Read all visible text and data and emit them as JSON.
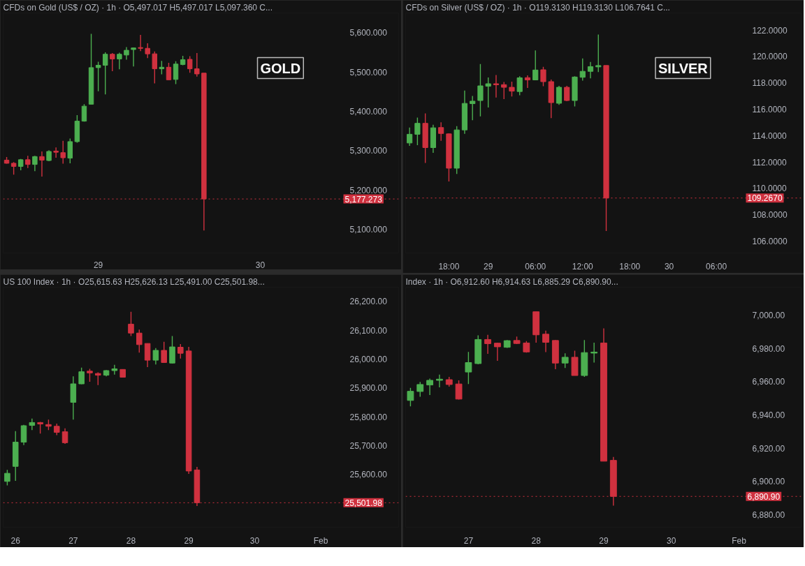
{
  "chart_data": [
    {
      "type": "candlestick",
      "title": "CFDs on Gold (US$ / OZ) · 1h · O5,497.017 H5,497.017 L5,097.360 C...",
      "annotations": [
        "GOLD"
      ],
      "categories": [
        null,
        null,
        null,
        null,
        null,
        null,
        null,
        null,
        null,
        null,
        null,
        null,
        null,
        "29",
        null,
        null,
        null,
        null,
        null,
        null,
        null,
        null,
        null,
        null,
        null,
        null,
        null,
        null,
        null,
        null,
        null,
        null,
        null,
        null,
        null,
        null,
        "30",
        null,
        null,
        null,
        null,
        null,
        null,
        null,
        null,
        null,
        null,
        null
      ],
      "ohlc": [
        [
          5276,
          5284,
          5267,
          5268
        ],
        [
          5268,
          5271,
          5239,
          5260
        ],
        [
          5260,
          5279,
          5250,
          5277
        ],
        [
          5277,
          5287,
          5256,
          5265
        ],
        [
          5265,
          5287,
          5248,
          5285
        ],
        [
          5285,
          5298,
          5234,
          5276
        ],
        [
          5275,
          5301,
          5273,
          5298
        ],
        [
          5299,
          5308,
          5282,
          5296
        ],
        [
          5295,
          5325,
          5267,
          5282
        ],
        [
          5281,
          5331,
          5268,
          5323
        ],
        [
          5323,
          5390,
          5320,
          5375
        ],
        [
          5375,
          5418,
          5374,
          5413
        ],
        [
          5418,
          5597,
          5418,
          5511
        ],
        [
          5511,
          5526,
          5451,
          5517
        ],
        [
          5517,
          5550,
          5443,
          5545
        ],
        [
          5545,
          5548,
          5502,
          5533
        ],
        [
          5533,
          5549,
          5507,
          5545
        ],
        [
          5543,
          5563,
          5531,
          5555
        ],
        [
          5557,
          5562,
          5514,
          5561
        ],
        [
          5562,
          5594,
          5553,
          5560
        ],
        [
          5560,
          5573,
          5535,
          5546
        ],
        [
          5546,
          5552,
          5471,
          5508
        ],
        [
          5508,
          5528,
          5494,
          5512
        ],
        [
          5512,
          5523,
          5480,
          5480
        ],
        [
          5481,
          5527,
          5469,
          5520
        ],
        [
          5519,
          5541,
          5517,
          5531
        ],
        [
          5532,
          5540,
          5498,
          5508
        ],
        [
          5508,
          5548,
          5488,
          5495
        ],
        [
          5497.017,
          5497.017,
          5097.36,
          5177.273
        ],
        null,
        null,
        null,
        null,
        null,
        null,
        null,
        null,
        null,
        null,
        null,
        null,
        null,
        null,
        null,
        null,
        null,
        null,
        null
      ],
      "colors": [
        "#d0313f",
        "#d0313f",
        "#4caf50",
        "#d0313f",
        "#4caf50",
        "#d0313f",
        "#4caf50",
        "#d0313f",
        "#d0313f",
        "#4caf50",
        "#4caf50",
        "#4caf50",
        "#4caf50",
        "#4caf50",
        "#4caf50",
        "#d0313f",
        "#4caf50",
        "#4caf50",
        "#4caf50",
        "#d0313f",
        "#d0313f",
        "#d0313f",
        "#4caf50",
        "#d0313f",
        "#4caf50",
        "#4caf50",
        "#d0313f",
        "#d0313f",
        "#d0313f",
        null,
        null,
        null,
        null,
        null,
        null,
        null,
        null,
        null,
        null,
        null,
        null,
        null,
        null,
        null,
        null,
        null,
        null,
        null
      ],
      "ylim": [
        5040,
        5650
      ],
      "yticks": [
        {
          "value": 5100,
          "label": "5,100.000"
        },
        {
          "value": 5200,
          "label": "5,200.000"
        },
        {
          "value": 5300,
          "label": "5,300.000"
        },
        {
          "value": 5400,
          "label": "5,400.000"
        },
        {
          "value": 5500,
          "label": "5,500.000"
        },
        {
          "value": 5600,
          "label": "5,600.000"
        }
      ],
      "ref_lines": [
        {
          "axis": "y",
          "value": 5177.273,
          "label": "5,177.273",
          "color": "#d0313f",
          "line_style": "dotted"
        }
      ]
    },
    {
      "type": "candlestick",
      "title": "CFDs on Silver (US$ / OZ) · 1h · O119.3130 H119.3130 L106.7641 C...",
      "annotations": [
        "SILVER"
      ],
      "categories": [
        null,
        null,
        null,
        null,
        null,
        "18:00",
        null,
        null,
        null,
        null,
        "29",
        null,
        null,
        null,
        null,
        null,
        "06:00",
        null,
        null,
        null,
        null,
        null,
        "12:00",
        null,
        null,
        null,
        null,
        null,
        "18:00",
        null,
        null,
        null,
        null,
        "30",
        null,
        null,
        null,
        null,
        null,
        "06:00",
        null,
        null,
        null
      ],
      "ohlc": [
        [
          113.44,
          114.61,
          113.22,
          114.1
        ],
        [
          114.1,
          115.36,
          113.28,
          114.93
        ],
        [
          114.93,
          115.68,
          111.92,
          113.09
        ],
        [
          113.09,
          114.82,
          112.69,
          114.59
        ],
        [
          114.61,
          115.01,
          113.6,
          114.16
        ],
        [
          114.13,
          114.18,
          110.52,
          111.53
        ],
        [
          111.53,
          114.72,
          111.09,
          114.43
        ],
        [
          114.43,
          117.41,
          114.13,
          116.44
        ],
        [
          116.42,
          117.01,
          115.17,
          116.61
        ],
        [
          116.66,
          119.42,
          115.46,
          117.77
        ],
        [
          117.74,
          118.41,
          116.13,
          117.93
        ],
        [
          117.93,
          118.59,
          116.89,
          117.85
        ],
        [
          117.86,
          118.06,
          116.77,
          117.66
        ],
        [
          117.66,
          118.09,
          116.97,
          117.37
        ],
        [
          117.34,
          118.5,
          117.06,
          118.38
        ],
        [
          118.39,
          118.57,
          117.61,
          118.22
        ],
        [
          118.22,
          120.46,
          118.22,
          118.97
        ],
        [
          118.99,
          119.21,
          117.74,
          118.09
        ],
        [
          118.09,
          118.25,
          115.33,
          116.5
        ],
        [
          116.45,
          117.77,
          116.33,
          117.66
        ],
        [
          117.66,
          117.77,
          116.61,
          116.66
        ],
        [
          116.66,
          118.5,
          116.21,
          118.44
        ],
        [
          118.42,
          119.85,
          118.17,
          118.87
        ],
        [
          118.87,
          119.58,
          118.34,
          119.23
        ],
        [
          119.21,
          121.66,
          118.81,
          119.31
        ],
        [
          119.313,
          119.313,
          106.7641,
          109.267
        ],
        null,
        null,
        null,
        null,
        null,
        null,
        null,
        null,
        null,
        null,
        null,
        null,
        null,
        null,
        null,
        null,
        null
      ],
      "colors": [
        "#4caf50",
        "#4caf50",
        "#d0313f",
        "#4caf50",
        "#d0313f",
        "#d0313f",
        "#4caf50",
        "#4caf50",
        "#4caf50",
        "#4caf50",
        "#4caf50",
        "#d0313f",
        "#d0313f",
        "#d0313f",
        "#4caf50",
        "#d0313f",
        "#4caf50",
        "#d0313f",
        "#d0313f",
        "#4caf50",
        "#d0313f",
        "#4caf50",
        "#4caf50",
        "#4caf50",
        "#4caf50",
        "#d0313f",
        null,
        null,
        null,
        null,
        null,
        null,
        null,
        null,
        null,
        null,
        null,
        null,
        null,
        null,
        null,
        null,
        null
      ],
      "ylim": [
        105.1,
        123.3
      ],
      "yticks": [
        {
          "value": 106,
          "label": "106.0000"
        },
        {
          "value": 108,
          "label": "108.0000"
        },
        {
          "value": 110,
          "label": "110.0000"
        },
        {
          "value": 112,
          "label": "112.0000"
        },
        {
          "value": 114,
          "label": "114.0000"
        },
        {
          "value": 116,
          "label": "116.0000"
        },
        {
          "value": 118,
          "label": "118.0000"
        },
        {
          "value": 120,
          "label": "120.0000"
        },
        {
          "value": 122,
          "label": "122.0000"
        }
      ],
      "ref_lines": [
        {
          "axis": "y",
          "value": 109.267,
          "label": "109.2670",
          "color": "#d0313f",
          "line_style": "dotted"
        }
      ]
    },
    {
      "type": "candlestick",
      "title": "US 100 Index · 1h · O25,615.63 H25,626.13 L25,491.00 C25,501.98...",
      "categories": [
        null,
        "26",
        null,
        null,
        null,
        null,
        null,
        null,
        "27",
        null,
        null,
        null,
        null,
        null,
        null,
        "28",
        null,
        null,
        null,
        null,
        null,
        null,
        "29",
        null,
        null,
        null,
        null,
        null,
        null,
        null,
        "30",
        null,
        null,
        null,
        null,
        null,
        null,
        null,
        "Feb",
        null,
        null
      ],
      "ohlc": [
        [
          25576,
          25616,
          25562,
          25604
        ],
        [
          25628,
          25750,
          25578,
          25712
        ],
        [
          25712,
          25772,
          25702,
          25769
        ],
        [
          25770,
          25794,
          25754,
          25780
        ],
        [
          25780,
          25782,
          25742,
          25775
        ],
        [
          25773,
          25790,
          25754,
          25767
        ],
        [
          25767,
          25776,
          25736,
          25746
        ],
        [
          25748,
          25760,
          25706,
          25710
        ],
        [
          25850,
          25940,
          25790,
          25914
        ],
        [
          25914,
          25970,
          25913,
          25956
        ],
        [
          25958,
          25966,
          25921,
          25952
        ],
        [
          25950,
          25954,
          25910,
          25944
        ],
        [
          25944,
          25962,
          25940,
          25960
        ],
        [
          25960,
          25980,
          25946,
          25966
        ],
        [
          25964,
          25965,
          25937,
          25937
        ],
        [
          26121,
          26164,
          26080,
          26090
        ],
        [
          26090,
          26102,
          26022,
          26050
        ],
        [
          26054,
          26054,
          25972,
          25996
        ],
        [
          25996,
          26038,
          25981,
          26030
        ],
        [
          26030,
          26060,
          25988,
          25988
        ],
        [
          25986,
          26080,
          25985,
          26042
        ],
        [
          26041,
          26052,
          26002,
          26020
        ],
        [
          26028,
          26042,
          25602,
          25612
        ],
        [
          25615.63,
          25626.13,
          25491,
          25501.98
        ],
        null,
        null,
        null,
        null,
        null,
        null,
        null,
        null,
        null,
        null,
        null,
        null,
        null,
        null,
        null,
        null,
        null
      ],
      "colors": [
        "#4caf50",
        "#4caf50",
        "#4caf50",
        "#4caf50",
        "#d0313f",
        "#d0313f",
        "#d0313f",
        "#d0313f",
        "#4caf50",
        "#4caf50",
        "#d0313f",
        "#d0313f",
        "#4caf50",
        "#4caf50",
        "#d0313f",
        "#d0313f",
        "#d0313f",
        "#d0313f",
        "#4caf50",
        "#d0313f",
        "#4caf50",
        "#d0313f",
        "#d0313f",
        "#d0313f",
        null,
        null,
        null,
        null,
        null,
        null,
        null,
        null,
        null,
        null,
        null,
        null,
        null,
        null,
        null,
        null,
        null
      ],
      "ylim": [
        25417,
        26249
      ],
      "yticks": [
        {
          "value": 25600,
          "label": "25,600.00"
        },
        {
          "value": 25700,
          "label": "25,700.00"
        },
        {
          "value": 25800,
          "label": "25,800.00"
        },
        {
          "value": 25900,
          "label": "25,900.00"
        },
        {
          "value": 26000,
          "label": "26,000.00"
        },
        {
          "value": 26100,
          "label": "26,100.00"
        },
        {
          "value": 26200,
          "label": "26,200.00"
        }
      ],
      "ref_lines": [
        {
          "axis": "y",
          "value": 25501.98,
          "label": "25,501.98",
          "color": "#d0313f",
          "line_style": "dotted"
        }
      ]
    },
    {
      "type": "candlestick",
      "title": "Index · 1h · O6,912.60 H6,914.63 L6,885.29 C6,890.90...",
      "categories": [
        null,
        null,
        null,
        null,
        null,
        null,
        "27",
        null,
        null,
        null,
        null,
        null,
        null,
        "28",
        null,
        null,
        null,
        null,
        null,
        null,
        "29",
        null,
        null,
        null,
        null,
        null,
        null,
        "30",
        null,
        null,
        null,
        null,
        null,
        null,
        "Feb"
      ],
      "ohlc": [
        [
          6948.7,
          6956.3,
          6945.1,
          6954.2
        ],
        [
          6954.1,
          6959.8,
          6950.9,
          6958.3
        ],
        [
          6958.0,
          6961.8,
          6952.0,
          6960.8
        ],
        [
          6960.8,
          6964.3,
          6956.6,
          6961.5
        ],
        [
          6961.2,
          6962.9,
          6957.0,
          6958.3
        ],
        [
          6958.6,
          6960.8,
          6949.2,
          6949.5
        ],
        [
          6965.8,
          6977.9,
          6958.6,
          6971.5
        ],
        [
          6970.9,
          6987.9,
          6970.5,
          6985.4
        ],
        [
          6985.4,
          6988.2,
          6976.8,
          6982.9
        ],
        [
          6983.2,
          6983.5,
          6972.6,
          6981.0
        ],
        [
          6980.7,
          6985.1,
          6980.3,
          6984.7
        ],
        [
          6984.8,
          6987.2,
          6982.6,
          6983.0
        ],
        [
          6983.3,
          6984.4,
          6977.5,
          6977.9
        ],
        [
          7002.1,
          7002.1,
          6983.5,
          6988.2
        ],
        [
          6988.6,
          6990.7,
          6977.8,
          6983.7
        ],
        [
          6984.8,
          6985.1,
          6967.5,
          6971.2
        ],
        [
          6971.2,
          6977.1,
          6968.2,
          6974.7
        ],
        [
          6974.7,
          6978.7,
          6963.7,
          6963.7
        ],
        [
          6963.7,
          6985.1,
          6962.9,
          6977.5
        ],
        [
          6977.2,
          6983.5,
          6971.5,
          6977.8
        ],
        [
          6983.3,
          6992.1,
          6912.1,
          6912.1
        ],
        [
          6912.6,
          6914.63,
          6885.29,
          6890.9
        ],
        null,
        null,
        null,
        null,
        null,
        null,
        null,
        null,
        null,
        null,
        null,
        null,
        null
      ],
      "colors": [
        "#4caf50",
        "#4caf50",
        "#4caf50",
        "#4caf50",
        "#d0313f",
        "#d0313f",
        "#4caf50",
        "#4caf50",
        "#d0313f",
        "#d0313f",
        "#4caf50",
        "#d0313f",
        "#d0313f",
        "#d0313f",
        "#d0313f",
        "#d0313f",
        "#4caf50",
        "#d0313f",
        "#4caf50",
        "#4caf50",
        "#d0313f",
        "#d0313f",
        null,
        null,
        null,
        null,
        null,
        null,
        null,
        null,
        null,
        null,
        null,
        null,
        null
      ],
      "ylim": [
        6872.3,
        7016.9
      ],
      "yticks": [
        {
          "value": 6880,
          "label": "6,880.00"
        },
        {
          "value": 6900,
          "label": "6,900.00"
        },
        {
          "value": 6920,
          "label": "6,920.00"
        },
        {
          "value": 6940,
          "label": "6,940.00"
        },
        {
          "value": 6960,
          "label": "6,960.00"
        },
        {
          "value": 6980,
          "label": "6,980.00"
        },
        {
          "value": 7000,
          "label": "7,000.00"
        }
      ],
      "ref_lines": [
        {
          "axis": "y",
          "value": 6890.9,
          "label": "6,890.90",
          "color": "#d0313f",
          "line_style": "dotted"
        }
      ]
    }
  ]
}
